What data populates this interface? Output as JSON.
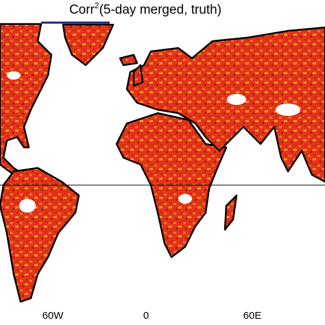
{
  "title": {
    "main": "Corr",
    "superscript": "2",
    "rest": "(5-day merged, truth)"
  },
  "lon_labels": [
    "60W",
    "0",
    "60E"
  ]
}
